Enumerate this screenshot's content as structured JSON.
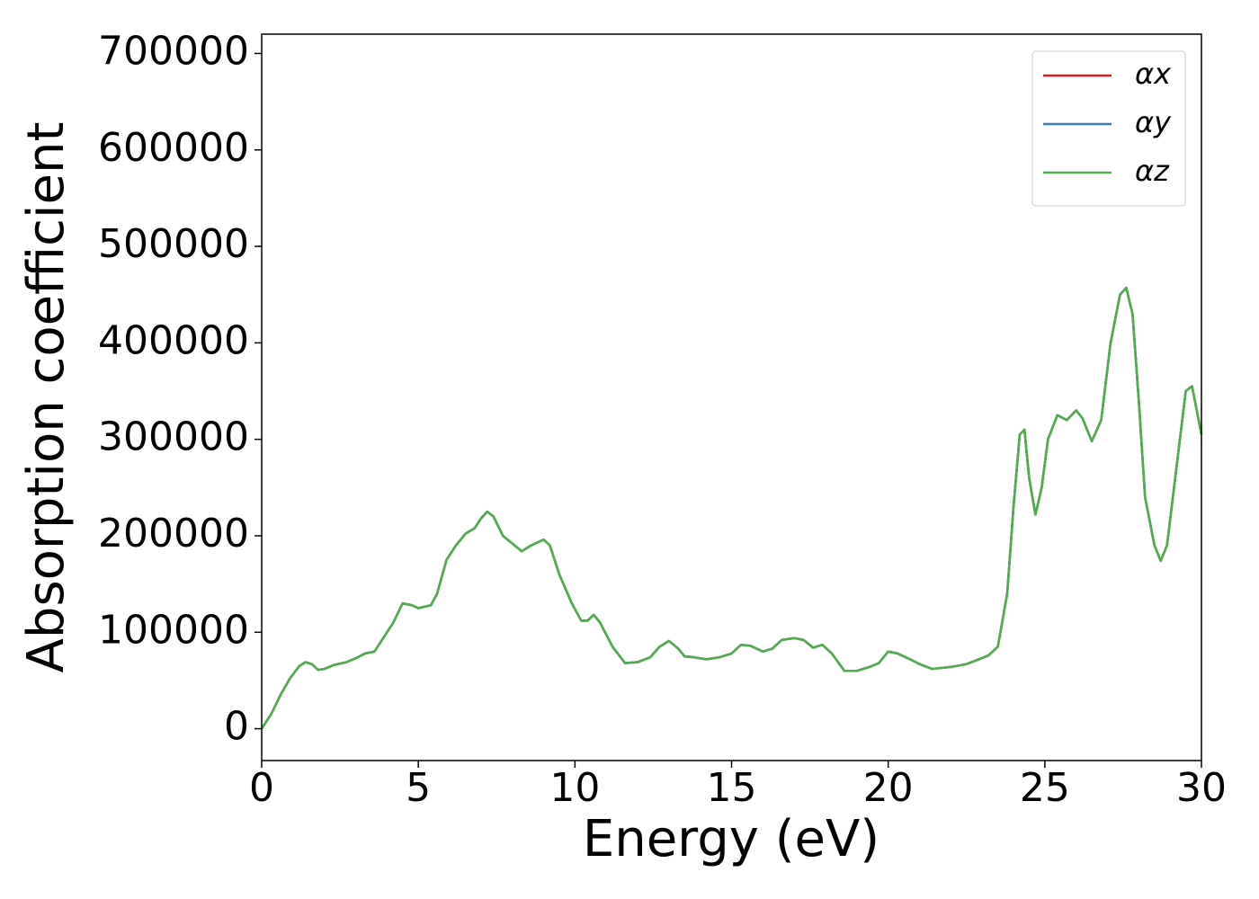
{
  "chart_data": {
    "type": "line",
    "xlabel": "Energy (eV)",
    "ylabel": "Absorption coefficient",
    "x": [
      0,
      0.3,
      0.6,
      0.9,
      1.2,
      1.4,
      1.6,
      1.8,
      2.0,
      2.3,
      2.7,
      3.0,
      3.3,
      3.6,
      3.9,
      4.2,
      4.5,
      4.8,
      5.0,
      5.4,
      5.6,
      5.9,
      6.2,
      6.5,
      6.8,
      7.0,
      7.2,
      7.4,
      7.7,
      8.0,
      8.3,
      8.6,
      9.0,
      9.2,
      9.5,
      9.9,
      10.2,
      10.4,
      10.6,
      10.8,
      11.2,
      11.6,
      12.0,
      12.4,
      12.7,
      13.0,
      13.3,
      13.5,
      13.8,
      14.2,
      14.6,
      15.0,
      15.3,
      15.6,
      16.0,
      16.3,
      16.6,
      17.0,
      17.3,
      17.6,
      17.9,
      18.2,
      18.6,
      19.0,
      19.4,
      19.7,
      20.0,
      20.3,
      20.7,
      21.0,
      21.4,
      22.0,
      22.5,
      22.9,
      23.2,
      23.5,
      23.8,
      24.0,
      24.2,
      24.35,
      24.5,
      24.7,
      24.9,
      25.1,
      25.4,
      25.7,
      26.0,
      26.2,
      26.5,
      26.8,
      27.1,
      27.4,
      27.6,
      27.8,
      28.0,
      28.2,
      28.5,
      28.7,
      28.9,
      29.2,
      29.5,
      29.7,
      30.0
    ],
    "series": [
      {
        "name": "αx",
        "color": "#e41a1c",
        "values": [
          0,
          15000,
          35000,
          52000,
          65000,
          69000,
          67000,
          61000,
          62000,
          66000,
          69000,
          73000,
          78000,
          80000,
          95000,
          110000,
          130000,
          128000,
          125000,
          128000,
          140000,
          175000,
          190000,
          202000,
          208000,
          218000,
          225000,
          220000,
          200000,
          192000,
          184000,
          190000,
          196000,
          190000,
          160000,
          130000,
          112000,
          112000,
          118000,
          110000,
          85000,
          68000,
          69000,
          74000,
          85000,
          91000,
          83000,
          75000,
          74000,
          72000,
          74000,
          78000,
          87000,
          86000,
          80000,
          83000,
          92000,
          94000,
          92000,
          84000,
          87000,
          78000,
          60000,
          60000,
          64000,
          68000,
          80000,
          78000,
          72000,
          67000,
          62000,
          64000,
          67000,
          72000,
          76000,
          85000,
          140000,
          230000,
          305000,
          310000,
          260000,
          222000,
          250000,
          300000,
          325000,
          320000,
          330000,
          322000,
          298000,
          320000,
          400000,
          450000,
          457000,
          430000,
          340000,
          240000,
          190000,
          174000,
          190000,
          270000,
          350000,
          355000,
          305000
        ]
      },
      {
        "name": "αy",
        "color": "#377eb8",
        "values": [
          0,
          15000,
          35000,
          52000,
          65000,
          69000,
          67000,
          61000,
          62000,
          66000,
          69000,
          73000,
          78000,
          80000,
          95000,
          110000,
          130000,
          128000,
          125000,
          128000,
          140000,
          175000,
          190000,
          202000,
          208000,
          218000,
          225000,
          220000,
          200000,
          192000,
          184000,
          190000,
          196000,
          190000,
          160000,
          130000,
          112000,
          112000,
          118000,
          110000,
          85000,
          68000,
          69000,
          74000,
          85000,
          91000,
          83000,
          75000,
          74000,
          72000,
          74000,
          78000,
          87000,
          86000,
          80000,
          83000,
          92000,
          94000,
          92000,
          84000,
          87000,
          78000,
          60000,
          60000,
          64000,
          68000,
          80000,
          78000,
          72000,
          67000,
          62000,
          64000,
          67000,
          72000,
          76000,
          85000,
          140000,
          230000,
          305000,
          310000,
          260000,
          222000,
          250000,
          300000,
          325000,
          320000,
          330000,
          322000,
          298000,
          320000,
          400000,
          450000,
          457000,
          430000,
          340000,
          240000,
          190000,
          174000,
          190000,
          270000,
          350000,
          355000,
          305000
        ]
      },
      {
        "name": "αz",
        "color": "#4daf4a",
        "values": [
          0,
          15000,
          35000,
          52000,
          65000,
          69000,
          67000,
          61000,
          62000,
          66000,
          69000,
          73000,
          78000,
          80000,
          95000,
          110000,
          130000,
          128000,
          125000,
          128000,
          140000,
          175000,
          190000,
          202000,
          208000,
          218000,
          225000,
          220000,
          200000,
          192000,
          184000,
          190000,
          196000,
          190000,
          160000,
          130000,
          112000,
          112000,
          118000,
          110000,
          85000,
          68000,
          69000,
          74000,
          85000,
          91000,
          83000,
          75000,
          74000,
          72000,
          74000,
          78000,
          87000,
          86000,
          80000,
          83000,
          92000,
          94000,
          92000,
          84000,
          87000,
          78000,
          60000,
          60000,
          64000,
          68000,
          80000,
          78000,
          72000,
          67000,
          62000,
          64000,
          67000,
          72000,
          76000,
          85000,
          140000,
          230000,
          305000,
          310000,
          260000,
          222000,
          250000,
          300000,
          325000,
          320000,
          330000,
          322000,
          298000,
          320000,
          400000,
          450000,
          457000,
          430000,
          340000,
          240000,
          190000,
          174000,
          190000,
          270000,
          350000,
          355000,
          305000
        ]
      }
    ],
    "xlim": [
      0,
      30
    ],
    "xticks": [
      0,
      5,
      10,
      15,
      20,
      25,
      30
    ],
    "ylim": [
      -33000,
      720000
    ],
    "yticks": [
      0,
      100000,
      200000,
      300000,
      400000,
      500000,
      600000,
      700000
    ],
    "grid": false,
    "legend": "upper right"
  }
}
